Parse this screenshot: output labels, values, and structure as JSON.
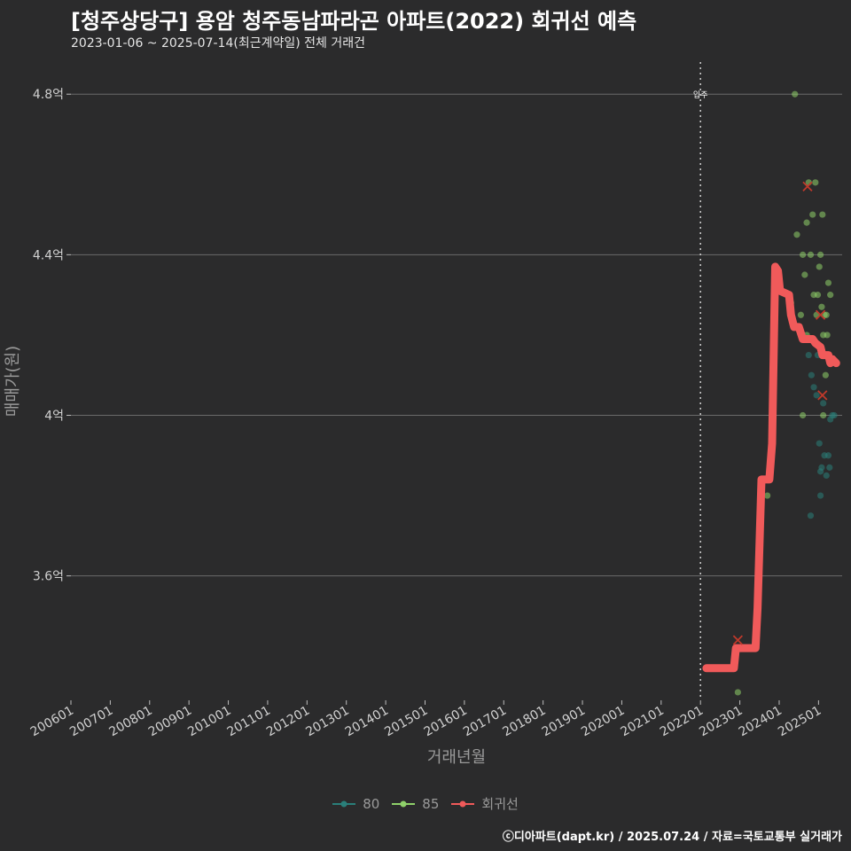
{
  "title": "[청주상당구] 용암 청주동남파라곤 아파트(2022) 회귀선 예측",
  "subtitle": "2023-01-06 ~ 2025-07-14(최근계약일) 전체 거래건",
  "footer": "ⓒ디아파트(dapt.kr) / 2025.07.24 / 자료=국토교통부 실거래가",
  "colors": {
    "background": "#2b2b2c",
    "grid": "#6a6a6a",
    "series80": "#2a7f7a",
    "series85": "#8fd16a",
    "regression": "#f05a5a",
    "cancel": "#c0392b"
  },
  "legend": [
    {
      "key": "80",
      "label": "80",
      "color": "#2a7f7a"
    },
    {
      "key": "85",
      "label": "85",
      "color": "#8fd16a"
    },
    {
      "key": "reg",
      "label": "회귀선",
      "color": "#f05a5a"
    }
  ],
  "chart_data": {
    "type": "scatter",
    "title": "[청주상당구] 용암 청주동남파라곤 아파트(2022) 회귀선 예측",
    "xlabel": "거래년월",
    "ylabel": "매매가(원)",
    "xlim": [
      2006.0,
      2025.6
    ],
    "ylim": [
      3.29,
      4.88
    ],
    "y_unit": "억",
    "yticks": [
      3.6,
      4.0,
      4.4,
      4.8
    ],
    "ytick_labels": [
      "3.6억",
      "4억",
      "4.4억",
      "4.8억"
    ],
    "xticks": [
      2006,
      2007,
      2008,
      2009,
      2010,
      2011,
      2012,
      2013,
      2014,
      2015,
      2016,
      2017,
      2018,
      2019,
      2020,
      2021,
      2022,
      2023,
      2024,
      2025
    ],
    "xtick_labels": [
      "200601",
      "200701",
      "200801",
      "200901",
      "201001",
      "201101",
      "201201",
      "201301",
      "201401",
      "201501",
      "201601",
      "201701",
      "201801",
      "201901",
      "202001",
      "202101",
      "202201",
      "202301",
      "202401",
      "202501"
    ],
    "vline": {
      "x": 2022.0,
      "label": "입주"
    },
    "grid": true,
    "series": [
      {
        "name": "80",
        "points": [
          [
            2024.75,
            4.15
          ],
          [
            2024.82,
            4.1
          ],
          [
            2024.88,
            4.07
          ],
          [
            2024.95,
            4.05
          ],
          [
            2024.98,
            4.15
          ],
          [
            2025.02,
            3.93
          ],
          [
            2025.05,
            3.86
          ],
          [
            2025.08,
            3.87
          ],
          [
            2025.12,
            4.03
          ],
          [
            2025.15,
            3.9
          ],
          [
            2025.2,
            3.85
          ],
          [
            2025.25,
            3.9
          ],
          [
            2025.28,
            3.87
          ],
          [
            2025.3,
            3.99
          ],
          [
            2025.35,
            4.0
          ],
          [
            2025.05,
            3.8
          ],
          [
            2024.8,
            3.75
          ],
          [
            2025.4,
            4.0
          ]
        ]
      },
      {
        "name": "85",
        "points": [
          [
            2022.95,
            3.31
          ],
          [
            2023.7,
            3.8
          ],
          [
            2024.3,
            4.28
          ],
          [
            2024.4,
            4.8
          ],
          [
            2024.45,
            4.45
          ],
          [
            2024.55,
            4.25
          ],
          [
            2024.6,
            4.4
          ],
          [
            2024.65,
            4.35
          ],
          [
            2024.7,
            4.48
          ],
          [
            2024.75,
            4.58
          ],
          [
            2024.8,
            4.4
          ],
          [
            2024.85,
            4.5
          ],
          [
            2024.88,
            4.3
          ],
          [
            2024.92,
            4.58
          ],
          [
            2024.95,
            4.25
          ],
          [
            2024.98,
            4.3
          ],
          [
            2025.02,
            4.37
          ],
          [
            2025.05,
            4.4
          ],
          [
            2025.08,
            4.27
          ],
          [
            2025.1,
            4.5
          ],
          [
            2025.12,
            4.2
          ],
          [
            2025.15,
            4.25
          ],
          [
            2025.18,
            4.1
          ],
          [
            2025.22,
            4.2
          ],
          [
            2025.25,
            4.33
          ],
          [
            2025.3,
            4.3
          ],
          [
            2024.6,
            4.0
          ],
          [
            2025.12,
            4.0
          ],
          [
            2025.2,
            4.25
          ],
          [
            2024.7,
            4.2
          ]
        ]
      }
    ],
    "cancelled": [
      [
        2022.95,
        3.44
      ],
      [
        2024.72,
        4.57
      ],
      [
        2025.05,
        4.25
      ],
      [
        2025.1,
        4.05
      ]
    ],
    "regression": [
      [
        2022.15,
        3.37
      ],
      [
        2022.85,
        3.37
      ],
      [
        2022.9,
        3.42
      ],
      [
        2023.4,
        3.42
      ],
      [
        2023.45,
        3.52
      ],
      [
        2023.55,
        3.84
      ],
      [
        2023.75,
        3.84
      ],
      [
        2023.82,
        3.93
      ],
      [
        2023.9,
        4.37
      ],
      [
        2023.97,
        4.36
      ],
      [
        2024.02,
        4.31
      ],
      [
        2024.25,
        4.3
      ],
      [
        2024.3,
        4.25
      ],
      [
        2024.38,
        4.22
      ],
      [
        2024.5,
        4.22
      ],
      [
        2024.6,
        4.19
      ],
      [
        2024.75,
        4.19
      ],
      [
        2024.85,
        4.19
      ],
      [
        2024.92,
        4.18
      ],
      [
        2025.05,
        4.17
      ],
      [
        2025.1,
        4.15
      ],
      [
        2025.25,
        4.15
      ],
      [
        2025.3,
        4.13
      ],
      [
        2025.35,
        4.14
      ],
      [
        2025.45,
        4.13
      ]
    ]
  }
}
